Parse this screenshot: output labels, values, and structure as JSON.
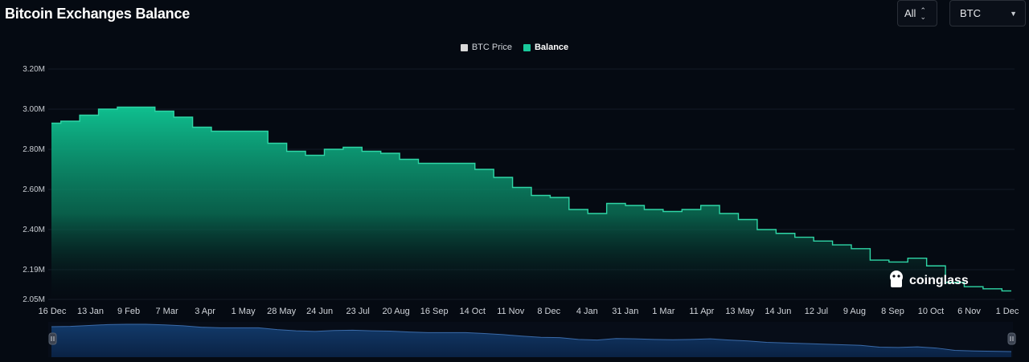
{
  "header": {
    "title": "Bitcoin Exchanges Balance",
    "range_select": "All",
    "asset_select": "BTC"
  },
  "legend": [
    {
      "label": "BTC Price",
      "color": "#d9d9d9"
    },
    {
      "label": "Balance",
      "color": "#19c99b"
    }
  ],
  "watermark": "coinglass",
  "colors": {
    "balance_line": "#2fd6a6",
    "balance_fill_top": "#0fbf8f",
    "navigator_fill": "#0d2a52",
    "background": "#050a12"
  },
  "chart_data": {
    "type": "area",
    "title": "Bitcoin Exchanges Balance",
    "series_name": "Balance",
    "y_unit": "BTC",
    "y_ticks": [
      "3.20M",
      "3.00M",
      "2.80M",
      "2.60M",
      "2.40M",
      "2.19M",
      "2.05M"
    ],
    "y_tick_values": [
      3200000,
      3000000,
      2800000,
      2600000,
      2400000,
      2190000,
      2050000
    ],
    "x_ticks": [
      "16 Dec",
      "13 Jan",
      "9 Feb",
      "7 Mar",
      "3 Apr",
      "1 May",
      "28 May",
      "24 Jun",
      "23 Jul",
      "20 Aug",
      "16 Sep",
      "14 Oct",
      "11 Nov",
      "8 Dec",
      "4 Jan",
      "31 Jan",
      "1 Mar",
      "11 Apr",
      "13 May",
      "14 Jun",
      "12 Jul",
      "9 Aug",
      "8 Sep",
      "10 Oct",
      "6 Nov",
      "1 Dec"
    ],
    "x": [
      "16 Dec",
      "30 Dec",
      "13 Jan",
      "27 Jan",
      "9 Feb",
      "23 Feb",
      "7 Mar",
      "21 Mar",
      "3 Apr",
      "17 Apr",
      "1 May",
      "14 May",
      "28 May",
      "11 Jun",
      "24 Jun",
      "9 Jul",
      "23 Jul",
      "6 Aug",
      "20 Aug",
      "3 Sep",
      "16 Sep",
      "30 Sep",
      "14 Oct",
      "28 Oct",
      "11 Nov",
      "25 Nov",
      "8 Dec",
      "22 Dec",
      "4 Jan",
      "18 Jan",
      "31 Jan",
      "15 Feb",
      "1 Mar",
      "21 Mar",
      "11 Apr",
      "27 Apr",
      "13 May",
      "29 May",
      "14 Jun",
      "28 Jun",
      "12 Jul",
      "26 Jul",
      "9 Aug",
      "24 Aug",
      "8 Sep",
      "24 Sep",
      "10 Oct",
      "24 Oct",
      "6 Nov",
      "18 Nov",
      "1 Dec",
      "8 Dec"
    ],
    "values": [
      2930000,
      2940000,
      2970000,
      3000000,
      3010000,
      3010000,
      2990000,
      2960000,
      2910000,
      2890000,
      2890000,
      2890000,
      2830000,
      2790000,
      2770000,
      2800000,
      2810000,
      2790000,
      2780000,
      2750000,
      2730000,
      2730000,
      2730000,
      2700000,
      2660000,
      2610000,
      2570000,
      2560000,
      2500000,
      2480000,
      2530000,
      2520000,
      2500000,
      2490000,
      2500000,
      2520000,
      2480000,
      2450000,
      2400000,
      2380000,
      2360000,
      2340000,
      2320000,
      2300000,
      2240000,
      2230000,
      2250000,
      2210000,
      2130000,
      2110000,
      2100000,
      2090000
    ]
  }
}
